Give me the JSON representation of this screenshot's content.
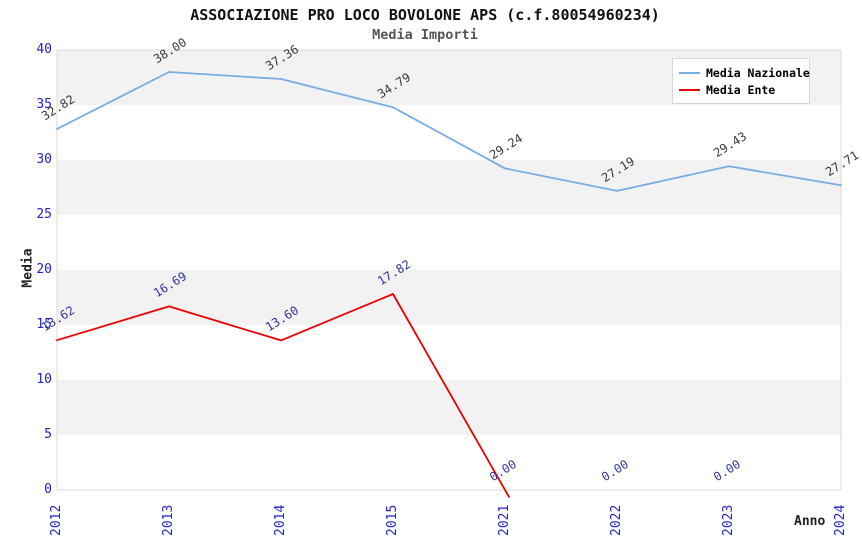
{
  "chart_data": {
    "type": "line",
    "title": "ASSOCIAZIONE PRO LOCO BOVOLONE APS (c.f.80054960234)",
    "subtitle": "Media Importi",
    "xlabel": "Anno",
    "ylabel": "Media",
    "categories": [
      "2012",
      "2013",
      "2014",
      "2015",
      "2021",
      "2022",
      "2023",
      "2024"
    ],
    "ylim": [
      0,
      40
    ],
    "ytick_step": 5,
    "grid": "alternating-horizontal-bands",
    "band_ranges": [
      [
        35,
        40
      ],
      [
        25,
        30
      ],
      [
        15,
        20
      ],
      [
        5,
        10
      ]
    ],
    "legend_position": "top-right",
    "series": [
      {
        "name": "Media Nazionale",
        "color": "#78ade2",
        "label_color": "#3a3a3a",
        "values": [
          32.82,
          38.0,
          37.36,
          34.79,
          29.24,
          27.19,
          29.43,
          27.71
        ]
      },
      {
        "name": "Media Ente",
        "color": "#ee0000",
        "label_color": "#333399",
        "values": [
          13.62,
          16.69,
          13.6,
          17.82,
          0.0,
          0.0,
          0.0,
          null
        ]
      }
    ],
    "colors": {
      "axis_tick": "#2222cc",
      "band": "#f2f2f2",
      "frame": "#d9d9d9",
      "background": "#ffffff"
    }
  }
}
